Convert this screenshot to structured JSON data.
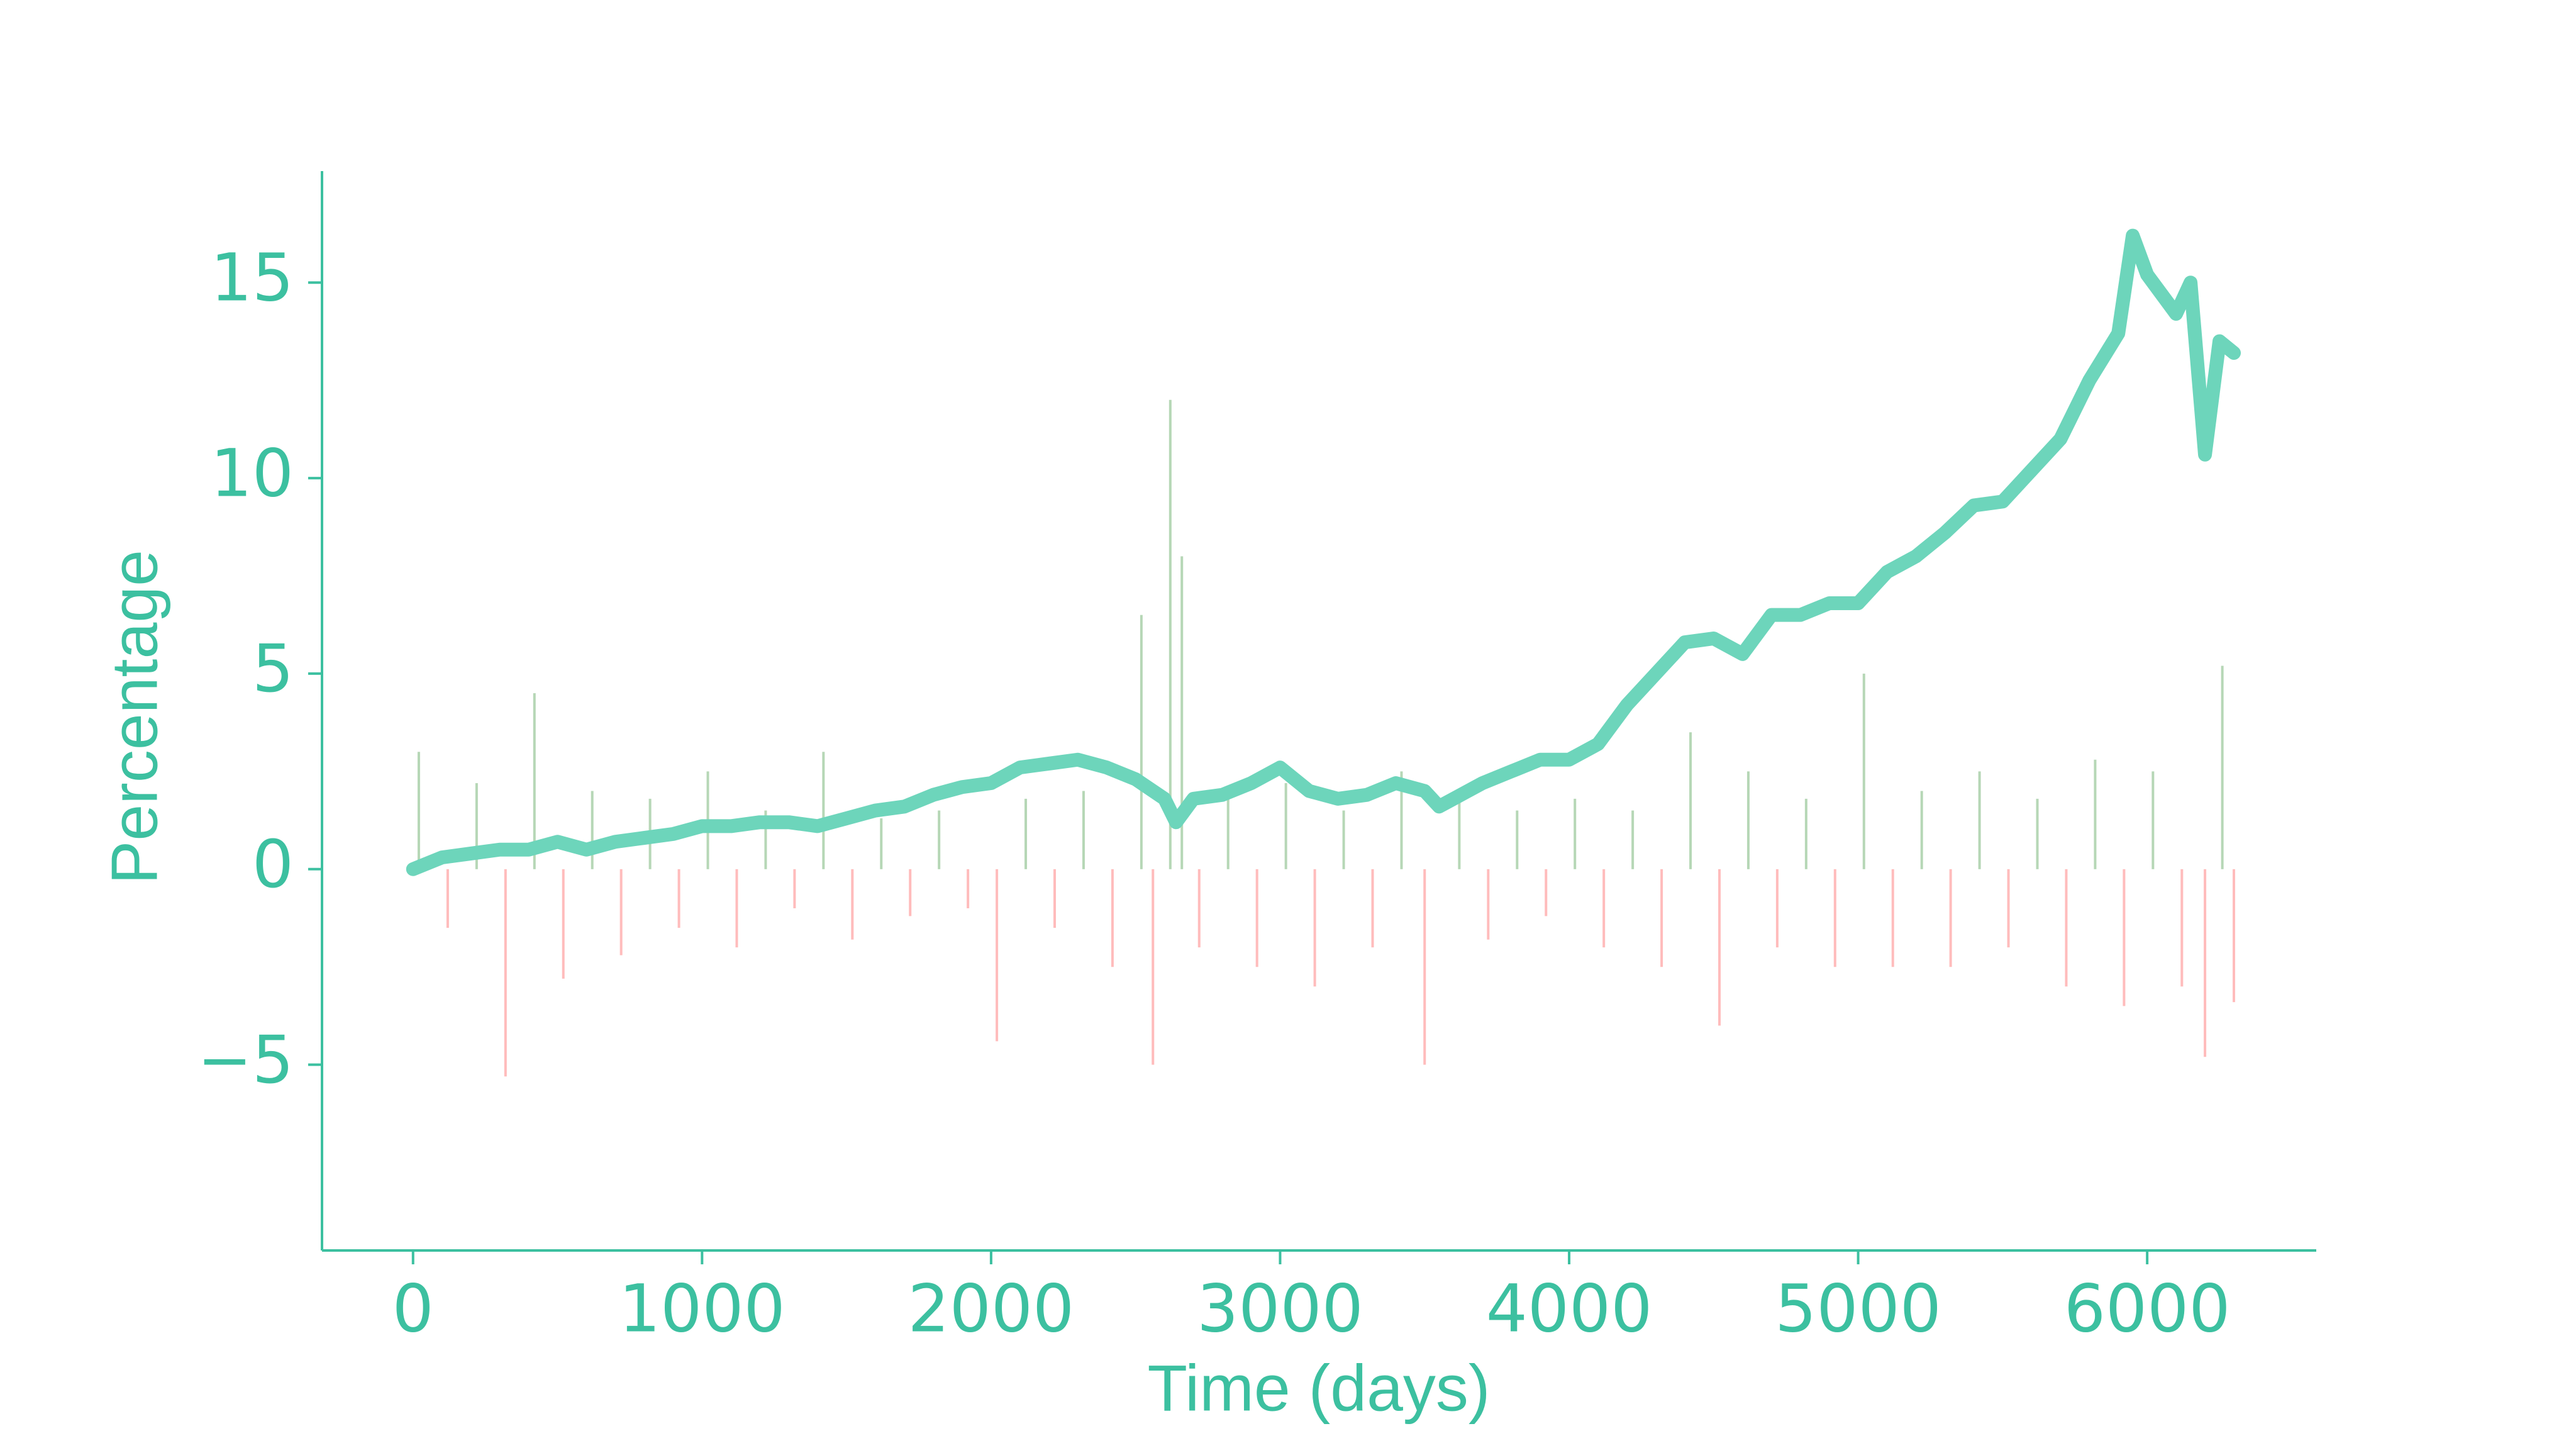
{
  "chart_data": {
    "type": "line",
    "x_label": "Time (days)",
    "y_label": "Percentage",
    "xlim": [
      -315,
      6585
    ],
    "ylim": [
      -9.75,
      17.85
    ],
    "xticks": [
      0,
      1000,
      2000,
      3000,
      4000,
      5000,
      6000
    ],
    "yticks": [
      {
        "value": -5,
        "label": "−5"
      },
      0,
      5,
      10,
      15
    ],
    "axis_color": "#3cc0a0",
    "series": [
      {
        "type": "bar",
        "color": "#2e8b2e",
        "negative_color": "#ff4040",
        "x": [
          20,
          120,
          220,
          320,
          420,
          520,
          620,
          720,
          820,
          920,
          1020,
          1120,
          1220,
          1320,
          1420,
          1520,
          1620,
          1720,
          1820,
          1920,
          2020,
          2120,
          2220,
          2320,
          2420,
          2520,
          2560,
          2620,
          2660,
          2720,
          2820,
          2920,
          3020,
          3120,
          3220,
          3320,
          3420,
          3500,
          3620,
          3720,
          3820,
          3920,
          4020,
          4120,
          4220,
          4320,
          4420,
          4520,
          4620,
          4720,
          4820,
          4920,
          5020,
          5120,
          5220,
          5320,
          5420,
          5520,
          5620,
          5720,
          5820,
          5920,
          6020,
          6120,
          6200,
          6260,
          6300
        ],
        "values": [
          3.0,
          -1.5,
          2.2,
          -5.3,
          4.5,
          -2.8,
          2.0,
          -2.2,
          1.8,
          -1.5,
          2.5,
          -2.0,
          1.5,
          -1.0,
          3.0,
          -1.8,
          1.3,
          -1.2,
          1.5,
          -1.0,
          -4.4,
          1.8,
          -1.5,
          2.0,
          -2.5,
          6.5,
          -5.0,
          12.0,
          8.0,
          -2.0,
          1.8,
          -2.5,
          2.2,
          -3.0,
          1.5,
          -2.0,
          2.5,
          -5.0,
          2.0,
          -1.8,
          1.5,
          -1.2,
          1.8,
          -2.0,
          1.5,
          -2.5,
          3.5,
          -4.0,
          2.5,
          -2.0,
          1.8,
          -2.5,
          5.0,
          -2.5,
          2.0,
          -2.5,
          2.5,
          -2.0,
          1.8,
          -3.0,
          2.8,
          -3.5,
          2.5,
          -3.0,
          -4.8,
          5.2,
          -3.4
        ]
      },
      {
        "type": "line",
        "color": "#6dd5bb",
        "x": [
          0,
          100,
          200,
          300,
          400,
          500,
          600,
          700,
          800,
          900,
          1000,
          1100,
          1200,
          1300,
          1400,
          1500,
          1600,
          1700,
          1800,
          1900,
          2000,
          2100,
          2200,
          2300,
          2400,
          2500,
          2600,
          2640,
          2700,
          2800,
          2900,
          3000,
          3100,
          3200,
          3300,
          3400,
          3500,
          3550,
          3600,
          3700,
          3800,
          3900,
          4000,
          4100,
          4200,
          4300,
          4400,
          4500,
          4600,
          4700,
          4800,
          4900,
          5000,
          5100,
          5200,
          5300,
          5400,
          5500,
          5600,
          5700,
          5800,
          5900,
          5950,
          6000,
          6100,
          6150,
          6200,
          6250,
          6300
        ],
        "values": [
          0,
          0.3,
          0.4,
          0.5,
          0.5,
          0.7,
          0.5,
          0.7,
          0.8,
          0.9,
          1.1,
          1.1,
          1.2,
          1.2,
          1.1,
          1.3,
          1.5,
          1.6,
          1.9,
          2.1,
          2.2,
          2.6,
          2.7,
          2.8,
          2.6,
          2.3,
          1.8,
          1.2,
          1.8,
          1.9,
          2.2,
          2.6,
          2.0,
          1.8,
          1.9,
          2.2,
          2.0,
          1.6,
          1.8,
          2.2,
          2.5,
          2.8,
          2.8,
          3.2,
          4.2,
          5.0,
          5.8,
          5.9,
          5.5,
          6.5,
          6.5,
          6.8,
          6.8,
          7.6,
          8.0,
          8.6,
          9.3,
          9.4,
          10.2,
          11.0,
          12.5,
          13.7,
          16.2,
          15.2,
          14.2,
          15.0,
          10.6,
          13.5,
          13.2
        ]
      }
    ]
  }
}
